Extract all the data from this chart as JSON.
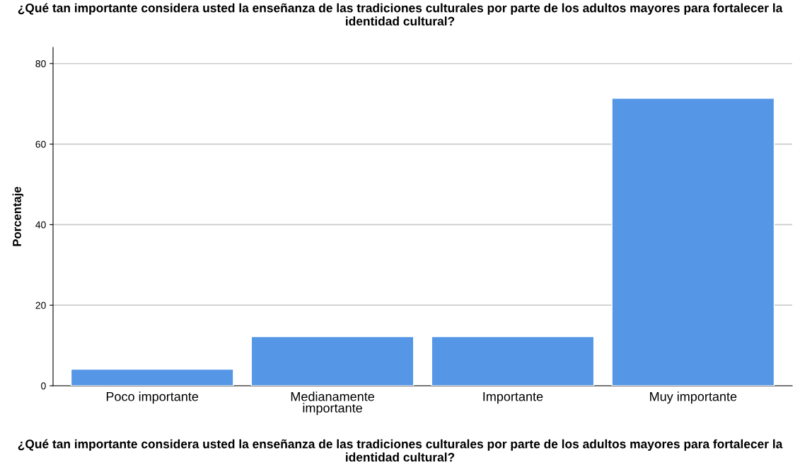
{
  "chart_data": {
    "type": "bar",
    "title": "¿Qué tan importante considera usted la enseñanza de las tradiciones culturales por parte de los adultos mayores para fortalecer la identidad cultural?",
    "xlabel": "¿Qué tan importante considera usted la enseñanza de las tradiciones culturales por parte de los adultos mayores para fortalecer la identidad cultural?",
    "ylabel": "Porcentaje",
    "categories": [
      "Poco importante",
      "Medianamente\nimportante",
      "Importante",
      "Muy importante"
    ],
    "values": [
      4.1,
      12.2,
      12.2,
      71.4
    ],
    "color": "#5596e6",
    "ylim": [
      0,
      84
    ],
    "yticks": [
      0,
      20,
      40,
      60,
      80
    ],
    "grid": "y"
  }
}
